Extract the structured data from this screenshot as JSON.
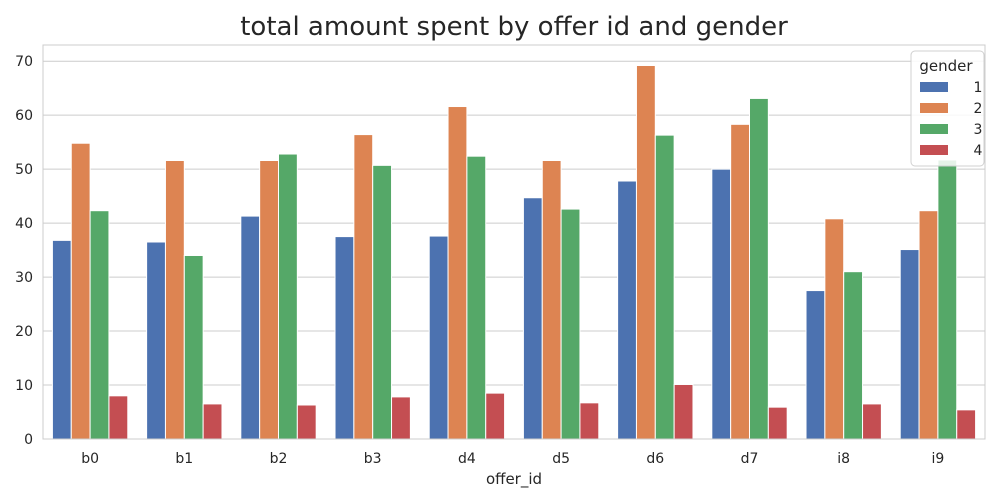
{
  "chart_data": {
    "type": "bar",
    "title": "total amount spent by offer id and gender",
    "xlabel": "offer_id",
    "ylabel": "",
    "categories": [
      "b0",
      "b1",
      "b2",
      "b3",
      "d4",
      "d5",
      "d6",
      "d7",
      "i8",
      "i9"
    ],
    "ylim": [
      0,
      73
    ],
    "yticks": [
      0,
      10,
      20,
      30,
      40,
      50,
      60,
      70
    ],
    "grid": true,
    "legend": {
      "title": "gender",
      "placement": "top-right"
    },
    "series": [
      {
        "name": "1",
        "color": "#4c72b0",
        "values": [
          36.8,
          36.5,
          41.3,
          37.5,
          37.6,
          44.7,
          47.8,
          50.0,
          27.5,
          35.1
        ]
      },
      {
        "name": "2",
        "color": "#dd8452",
        "values": [
          54.8,
          51.6,
          51.6,
          56.4,
          61.6,
          51.6,
          69.2,
          58.3,
          40.8,
          42.3
        ]
      },
      {
        "name": "3",
        "color": "#55a868",
        "values": [
          42.3,
          34.0,
          52.8,
          50.7,
          52.4,
          42.6,
          56.3,
          63.1,
          31.0,
          51.7
        ]
      },
      {
        "name": "4",
        "color": "#c44e52",
        "values": [
          8.0,
          6.5,
          6.3,
          7.8,
          8.5,
          6.7,
          10.1,
          5.9,
          6.5,
          5.4
        ]
      }
    ]
  }
}
